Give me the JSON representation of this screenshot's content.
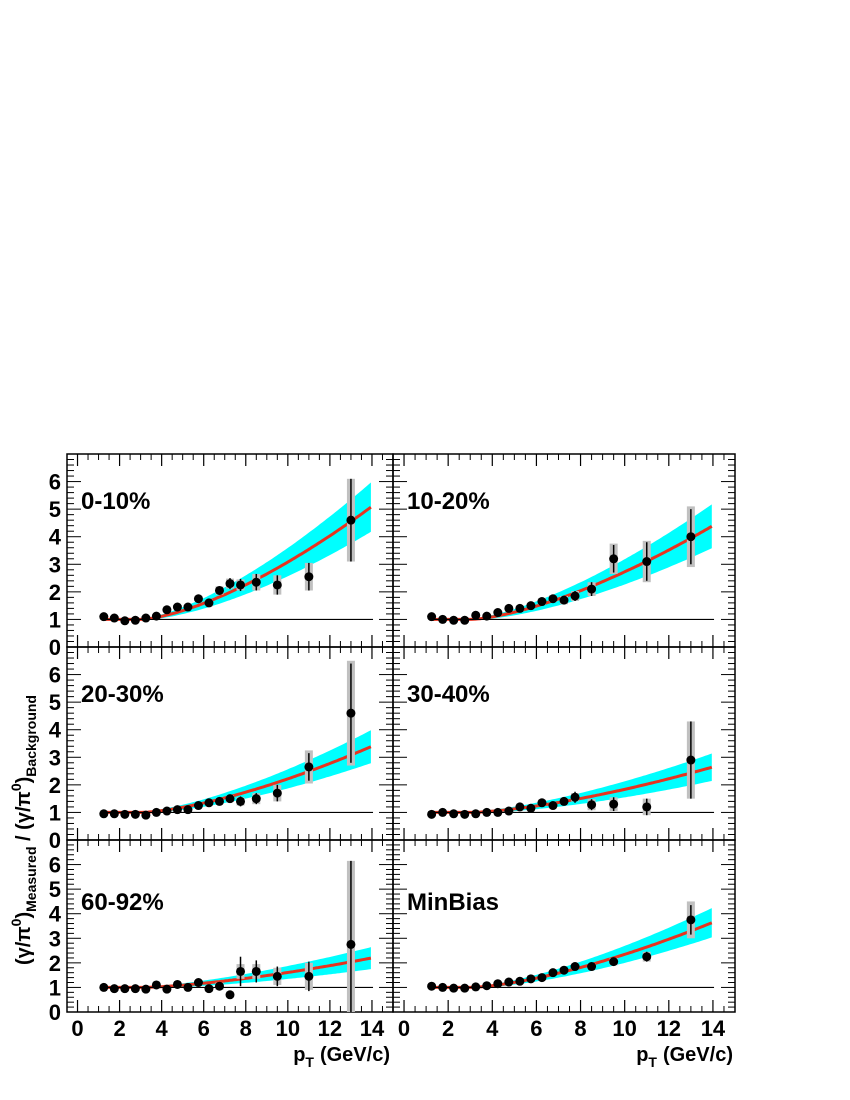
{
  "colors": {
    "data_point": "#000000",
    "sys_error": "#c0c0c0",
    "fit_band": "#00ffff",
    "fit_line": "#e8331f",
    "reference_line": "#000000"
  },
  "chart_data": {
    "type": "scatter",
    "layout": "3x2 grid of panels sharing axes",
    "xlabel_main": "p",
    "xlabel_sub": "T",
    "xlabel_unit": "(GeV/c)",
    "ylabel": "(γ/π0)Measured / (γ/π0)Background",
    "ylabel_parts": {
      "open": "(γ/π",
      "sup": "0",
      "close_num": ")",
      "sub_num": "Measured",
      "mid": " / (γ/π",
      "close_den": ")",
      "sub_den": "Background"
    },
    "xlim": [
      -0.5,
      15
    ],
    "ylim": [
      0,
      7
    ],
    "xticks": [
      0,
      2,
      4,
      6,
      8,
      10,
      12,
      14
    ],
    "xtick_labels": [
      "0",
      "2",
      "4",
      "6",
      "8",
      "10",
      "12",
      "14"
    ],
    "yticks": [
      0,
      1,
      2,
      3,
      4,
      5,
      6
    ],
    "ytick_labels": [
      "0",
      "1",
      "2",
      "3",
      "4",
      "5",
      "6"
    ],
    "reference_y": 1,
    "panels": [
      {
        "label": "0-10%",
        "x": [
          1.25,
          1.75,
          2.25,
          2.75,
          3.25,
          3.75,
          4.25,
          4.75,
          5.25,
          5.75,
          6.25,
          6.75,
          7.25,
          7.75,
          8.5,
          9.5,
          11.0,
          13.0
        ],
        "y": [
          1.1,
          1.05,
          0.95,
          0.97,
          1.05,
          1.12,
          1.35,
          1.45,
          1.45,
          1.75,
          1.6,
          2.05,
          2.3,
          2.25,
          2.35,
          2.25,
          2.55,
          4.6
        ],
        "err": [
          0.05,
          0.05,
          0.05,
          0.05,
          0.05,
          0.06,
          0.07,
          0.08,
          0.08,
          0.1,
          0.12,
          0.15,
          0.2,
          0.22,
          0.3,
          0.35,
          0.5,
          1.5
        ],
        "sys": [
          0.05,
          0.05,
          0.05,
          0.05,
          0.05,
          0.06,
          0.07,
          0.08,
          0.09,
          0.1,
          0.12,
          0.15,
          0.18,
          0.2,
          0.3,
          0.35,
          0.5,
          1.5
        ],
        "fit_end": 5.1,
        "band_halfwidth_end": 0.9
      },
      {
        "label": "10-20%",
        "x": [
          1.25,
          1.75,
          2.25,
          2.75,
          3.25,
          3.75,
          4.25,
          4.75,
          5.25,
          5.75,
          6.25,
          6.75,
          7.25,
          7.75,
          8.5,
          9.5,
          11.0,
          13.0
        ],
        "y": [
          1.1,
          1.0,
          0.97,
          0.97,
          1.15,
          1.12,
          1.25,
          1.4,
          1.4,
          1.5,
          1.65,
          1.75,
          1.7,
          1.85,
          2.1,
          3.2,
          3.1,
          4.0
        ],
        "err": [
          0.05,
          0.05,
          0.05,
          0.05,
          0.05,
          0.06,
          0.07,
          0.08,
          0.08,
          0.1,
          0.12,
          0.12,
          0.15,
          0.18,
          0.25,
          0.5,
          0.7,
          1.0
        ],
        "sys": [
          0.05,
          0.05,
          0.05,
          0.05,
          0.05,
          0.06,
          0.07,
          0.08,
          0.09,
          0.1,
          0.12,
          0.12,
          0.15,
          0.18,
          0.25,
          0.55,
          0.75,
          1.1
        ],
        "fit_end": 4.4,
        "band_halfwidth_end": 0.8
      },
      {
        "label": "20-30%",
        "x": [
          1.25,
          1.75,
          2.25,
          2.75,
          3.25,
          3.75,
          4.25,
          4.75,
          5.25,
          5.75,
          6.25,
          6.75,
          7.25,
          7.75,
          8.5,
          9.5,
          11.0,
          13.0
        ],
        "y": [
          0.95,
          0.95,
          0.93,
          0.93,
          0.9,
          1.0,
          1.05,
          1.1,
          1.1,
          1.25,
          1.35,
          1.4,
          1.5,
          1.4,
          1.5,
          1.7,
          2.65,
          4.6
        ],
        "err": [
          0.04,
          0.04,
          0.04,
          0.04,
          0.05,
          0.05,
          0.06,
          0.07,
          0.07,
          0.08,
          0.1,
          0.1,
          0.15,
          0.18,
          0.2,
          0.3,
          0.5,
          1.8
        ],
        "sys": [
          0.04,
          0.04,
          0.04,
          0.04,
          0.05,
          0.05,
          0.06,
          0.07,
          0.07,
          0.08,
          0.1,
          0.1,
          0.12,
          0.15,
          0.2,
          0.3,
          0.6,
          1.9
        ],
        "fit_end": 3.4,
        "band_halfwidth_end": 0.6
      },
      {
        "label": "30-40%",
        "x": [
          1.25,
          1.75,
          2.25,
          2.75,
          3.25,
          3.75,
          4.25,
          4.75,
          5.25,
          5.75,
          6.25,
          6.75,
          7.25,
          7.75,
          8.5,
          9.5,
          11.0,
          13.0
        ],
        "y": [
          0.93,
          1.0,
          0.95,
          0.93,
          0.95,
          1.0,
          1.0,
          1.05,
          1.2,
          1.15,
          1.35,
          1.25,
          1.4,
          1.55,
          1.28,
          1.3,
          1.2,
          2.9
        ],
        "err": [
          0.04,
          0.04,
          0.04,
          0.04,
          0.05,
          0.05,
          0.06,
          0.07,
          0.07,
          0.08,
          0.1,
          0.1,
          0.15,
          0.2,
          0.2,
          0.25,
          0.3,
          1.4
        ],
        "sys": [
          0.04,
          0.04,
          0.04,
          0.04,
          0.05,
          0.05,
          0.06,
          0.07,
          0.07,
          0.08,
          0.1,
          0.1,
          0.12,
          0.15,
          0.2,
          0.25,
          0.3,
          1.4
        ],
        "fit_end": 2.65,
        "band_halfwidth_end": 0.5
      },
      {
        "label": "60-92%",
        "x": [
          1.25,
          1.75,
          2.25,
          2.75,
          3.25,
          3.75,
          4.25,
          4.75,
          5.25,
          5.75,
          6.25,
          6.75,
          7.25,
          7.75,
          8.5,
          9.5,
          11.0,
          13.0
        ],
        "y": [
          1.0,
          0.95,
          0.95,
          0.95,
          0.93,
          1.1,
          0.93,
          1.12,
          1.0,
          1.2,
          0.95,
          1.05,
          0.7,
          1.65,
          1.65,
          1.45,
          1.45,
          2.75
        ],
        "err": [
          0.04,
          0.04,
          0.04,
          0.05,
          0.05,
          0.06,
          0.07,
          0.08,
          0.08,
          0.1,
          0.12,
          0.15,
          0.1,
          0.6,
          0.45,
          0.4,
          0.6,
          3.4
        ],
        "sys": [
          0.04,
          0.04,
          0.04,
          0.05,
          0.05,
          0.06,
          0.07,
          0.08,
          0.08,
          0.1,
          0.12,
          0.15,
          0.1,
          0.3,
          0.3,
          0.35,
          0.55,
          3.4
        ],
        "fit_end": 2.2,
        "band_halfwidth_end": 0.45
      },
      {
        "label": "MinBias",
        "x": [
          1.25,
          1.75,
          2.25,
          2.75,
          3.25,
          3.75,
          4.25,
          4.75,
          5.25,
          5.75,
          6.25,
          6.75,
          7.25,
          7.75,
          8.5,
          9.5,
          11.0,
          13.0
        ],
        "y": [
          1.05,
          1.0,
          0.97,
          0.97,
          1.02,
          1.07,
          1.15,
          1.22,
          1.25,
          1.35,
          1.4,
          1.6,
          1.7,
          1.85,
          1.85,
          2.05,
          2.25,
          3.75
        ],
        "err": [
          0.03,
          0.03,
          0.03,
          0.03,
          0.04,
          0.04,
          0.05,
          0.05,
          0.06,
          0.06,
          0.08,
          0.08,
          0.1,
          0.12,
          0.12,
          0.15,
          0.2,
          0.6
        ],
        "sys": [
          0.03,
          0.03,
          0.03,
          0.03,
          0.04,
          0.04,
          0.05,
          0.05,
          0.06,
          0.06,
          0.08,
          0.08,
          0.1,
          0.12,
          0.12,
          0.15,
          0.2,
          0.75
        ],
        "fit_end": 3.65,
        "band_halfwidth_end": 0.6
      }
    ]
  }
}
